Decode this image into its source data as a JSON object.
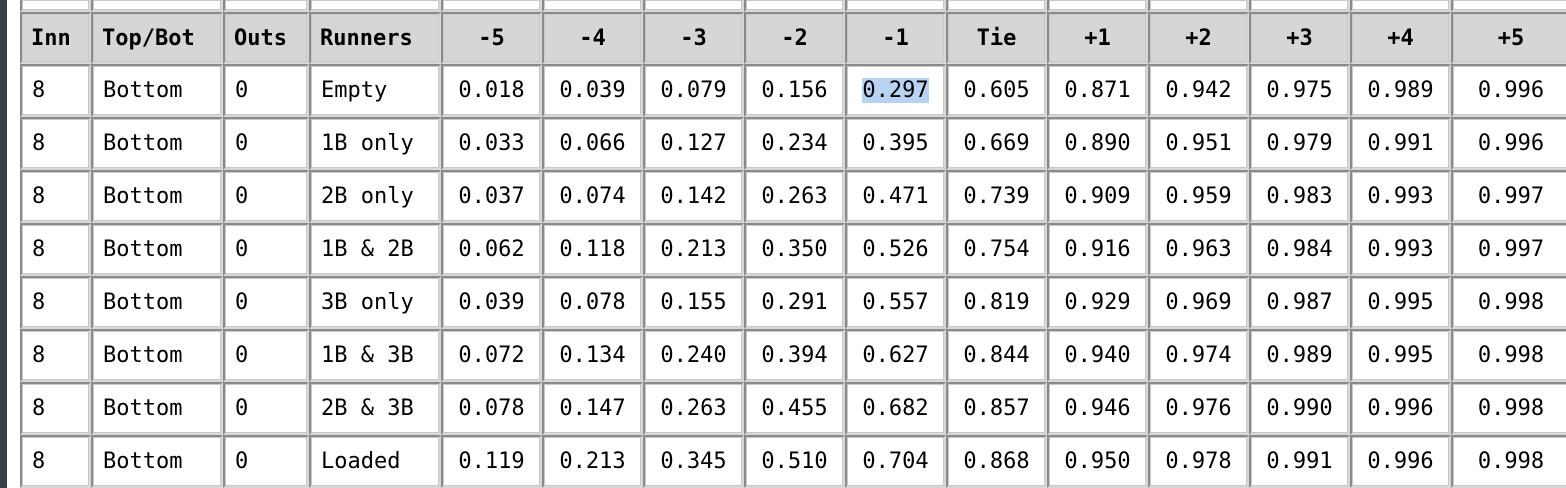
{
  "table": {
    "columns": [
      "Inn",
      "Top/Bot",
      "Outs",
      "Runners",
      "-5",
      "-4",
      "-3",
      "-2",
      "-1",
      "Tie",
      "+1",
      "+2",
      "+3",
      "+4",
      "+5"
    ],
    "rows": [
      [
        "8",
        "Bottom",
        "0",
        "Empty",
        "0.018",
        "0.039",
        "0.079",
        "0.156",
        "0.297",
        "0.605",
        "0.871",
        "0.942",
        "0.975",
        "0.989",
        "0.996"
      ],
      [
        "8",
        "Bottom",
        "0",
        "1B only",
        "0.033",
        "0.066",
        "0.127",
        "0.234",
        "0.395",
        "0.669",
        "0.890",
        "0.951",
        "0.979",
        "0.991",
        "0.996"
      ],
      [
        "8",
        "Bottom",
        "0",
        "2B only",
        "0.037",
        "0.074",
        "0.142",
        "0.263",
        "0.471",
        "0.739",
        "0.909",
        "0.959",
        "0.983",
        "0.993",
        "0.997"
      ],
      [
        "8",
        "Bottom",
        "0",
        "1B & 2B",
        "0.062",
        "0.118",
        "0.213",
        "0.350",
        "0.526",
        "0.754",
        "0.916",
        "0.963",
        "0.984",
        "0.993",
        "0.997"
      ],
      [
        "8",
        "Bottom",
        "0",
        "3B only",
        "0.039",
        "0.078",
        "0.155",
        "0.291",
        "0.557",
        "0.819",
        "0.929",
        "0.969",
        "0.987",
        "0.995",
        "0.998"
      ],
      [
        "8",
        "Bottom",
        "0",
        "1B & 3B",
        "0.072",
        "0.134",
        "0.240",
        "0.394",
        "0.627",
        "0.844",
        "0.940",
        "0.974",
        "0.989",
        "0.995",
        "0.998"
      ],
      [
        "8",
        "Bottom",
        "0",
        "2B & 3B",
        "0.078",
        "0.147",
        "0.263",
        "0.455",
        "0.682",
        "0.857",
        "0.946",
        "0.976",
        "0.990",
        "0.996",
        "0.998"
      ],
      [
        "8",
        "Bottom",
        "0",
        "Loaded",
        "0.119",
        "0.213",
        "0.345",
        "0.510",
        "0.704",
        "0.868",
        "0.950",
        "0.978",
        "0.991",
        "0.996",
        "0.998"
      ]
    ],
    "selection": {
      "row": 0,
      "column": 8,
      "highlight_color": "#b8d2f2"
    }
  },
  "colors": {
    "header_bg": "#d6d6d6",
    "cell_bg": "#ffffff",
    "border": "#8a8a8a",
    "window_edge": "#3a3f45"
  }
}
